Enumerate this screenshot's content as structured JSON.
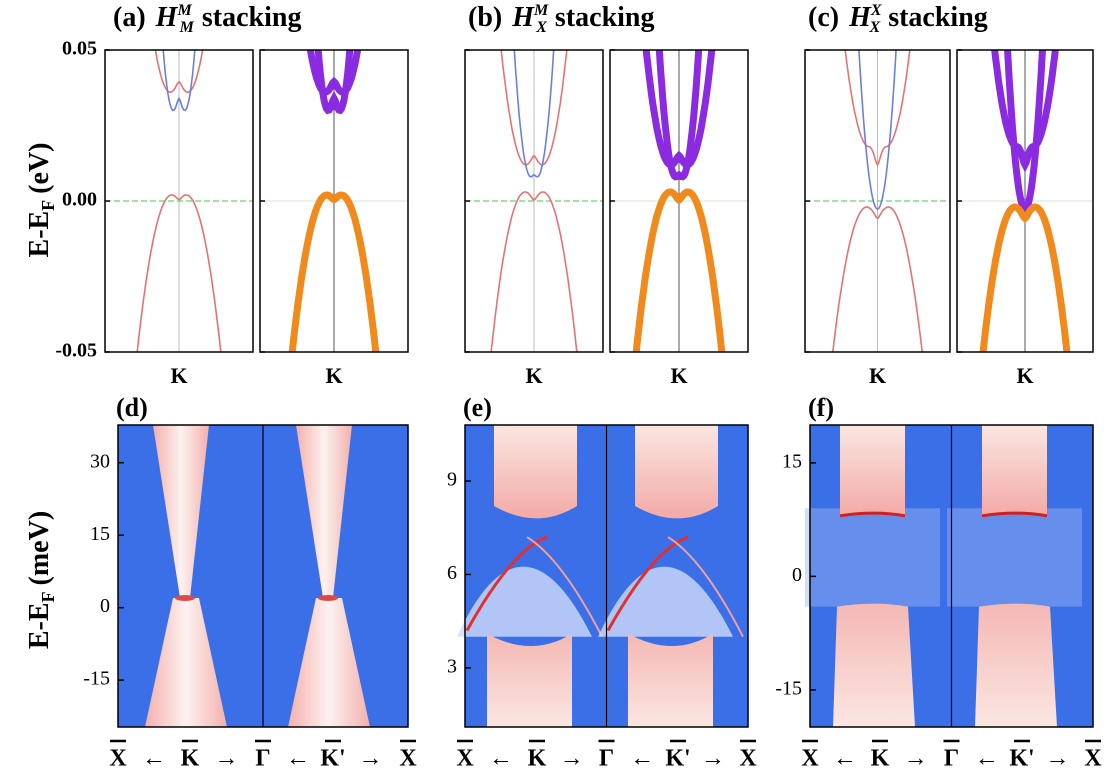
{
  "top_ylabel": {
    "text": "E-E",
    "sub": "F",
    "unit": "(eV)"
  },
  "bottom_ylabel": {
    "text": "E-E",
    "sub": "F",
    "unit": "(meV)"
  },
  "top_row": {
    "ylim": [
      -0.05,
      0.05
    ],
    "yticks": [
      {
        "value": 0.05,
        "label": "0.05"
      },
      {
        "value": 0,
        "label": "0.00"
      },
      {
        "value": -0.05,
        "label": "-0.05"
      }
    ],
    "panels": [
      {
        "label": "(a)",
        "symbol": "H",
        "sup": "M",
        "sub": "M",
        "text": "stacking",
        "xlabels": [
          "K",
          "K"
        ]
      },
      {
        "label": "(b)",
        "symbol": "H",
        "sup": "M",
        "sub": "X",
        "text": "stacking",
        "xlabels": [
          "K",
          "K"
        ]
      },
      {
        "label": "(c)",
        "symbol": "H",
        "sup": "X",
        "sub": "X",
        "text": "stacking",
        "xlabels": [
          "K",
          "K"
        ]
      }
    ]
  },
  "bottom_row": {
    "xlabels": [
      "X",
      "←",
      "K",
      "→",
      "Γ",
      "←",
      "K'",
      "→",
      "X"
    ],
    "panels": [
      {
        "label": "(d)",
        "ylim": [
          -24.7,
          37.8
        ],
        "yticks": [
          30,
          15,
          0,
          -15
        ]
      },
      {
        "label": "(e)",
        "ylim": [
          1.1,
          10.8
        ],
        "yticks": [
          9,
          6,
          3
        ]
      },
      {
        "label": "(f)",
        "ylim": [
          -19.9,
          20
        ],
        "yticks": [
          15,
          0,
          -15
        ]
      }
    ]
  }
}
